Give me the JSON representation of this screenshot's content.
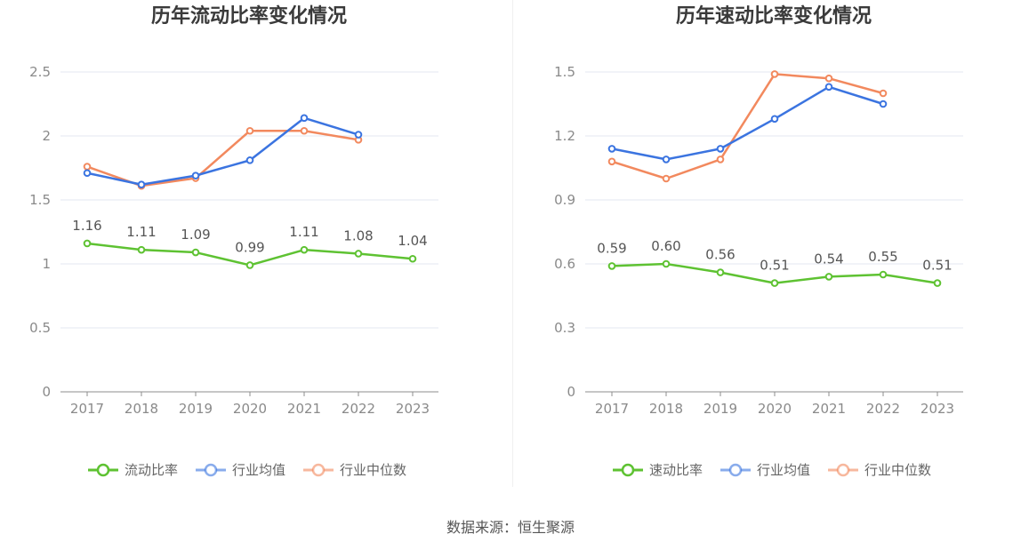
{
  "source": "数据来源：恒生聚源",
  "chart_data": [
    {
      "type": "line",
      "title": "历年流动比率变化情况",
      "x": [
        "2017",
        "2018",
        "2019",
        "2020",
        "2021",
        "2022",
        "2023"
      ],
      "ylim": [
        0,
        2.5
      ],
      "yticks": [
        "0",
        "0.5",
        "1",
        "1.5",
        "2",
        "2.5"
      ],
      "grid": true,
      "legend_position": "bottom",
      "series": [
        {
          "name": "流动比率",
          "color": "#5ec232",
          "values": [
            1.16,
            1.11,
            1.09,
            0.99,
            1.11,
            1.08,
            1.04
          ],
          "labels": [
            "1.16",
            "1.11",
            "1.09",
            "0.99",
            "1.11",
            "1.08",
            "1.04"
          ],
          "show_labels": true
        },
        {
          "name": "行业均值",
          "color": "#3b74e0",
          "values": [
            1.71,
            1.62,
            1.69,
            1.81,
            2.14,
            2.01,
            null
          ],
          "show_labels": false
        },
        {
          "name": "行业中位数",
          "color": "#f2895e",
          "values": [
            1.76,
            1.61,
            1.67,
            2.04,
            2.04,
            1.97,
            null
          ],
          "show_labels": false
        }
      ]
    },
    {
      "type": "line",
      "title": "历年速动比率变化情况",
      "x": [
        "2017",
        "2018",
        "2019",
        "2020",
        "2021",
        "2022",
        "2023"
      ],
      "ylim": [
        0,
        1.5
      ],
      "yticks": [
        "0",
        "0.3",
        "0.6",
        "0.9",
        "1.2",
        "1.5"
      ],
      "grid": true,
      "legend_position": "bottom",
      "series": [
        {
          "name": "速动比率",
          "color": "#5ec232",
          "values": [
            0.59,
            0.6,
            0.56,
            0.51,
            0.54,
            0.55,
            0.51
          ],
          "labels": [
            "0.59",
            "0.60",
            "0.56",
            "0.51",
            "0.54",
            "0.55",
            "0.51"
          ],
          "show_labels": true
        },
        {
          "name": "行业均值",
          "color": "#3b74e0",
          "values": [
            1.14,
            1.09,
            1.14,
            1.28,
            1.43,
            1.35,
            null
          ],
          "show_labels": false
        },
        {
          "name": "行业中位数",
          "color": "#f2895e",
          "values": [
            1.08,
            1.0,
            1.09,
            1.49,
            1.47,
            1.4,
            null
          ],
          "show_labels": false
        }
      ]
    }
  ]
}
